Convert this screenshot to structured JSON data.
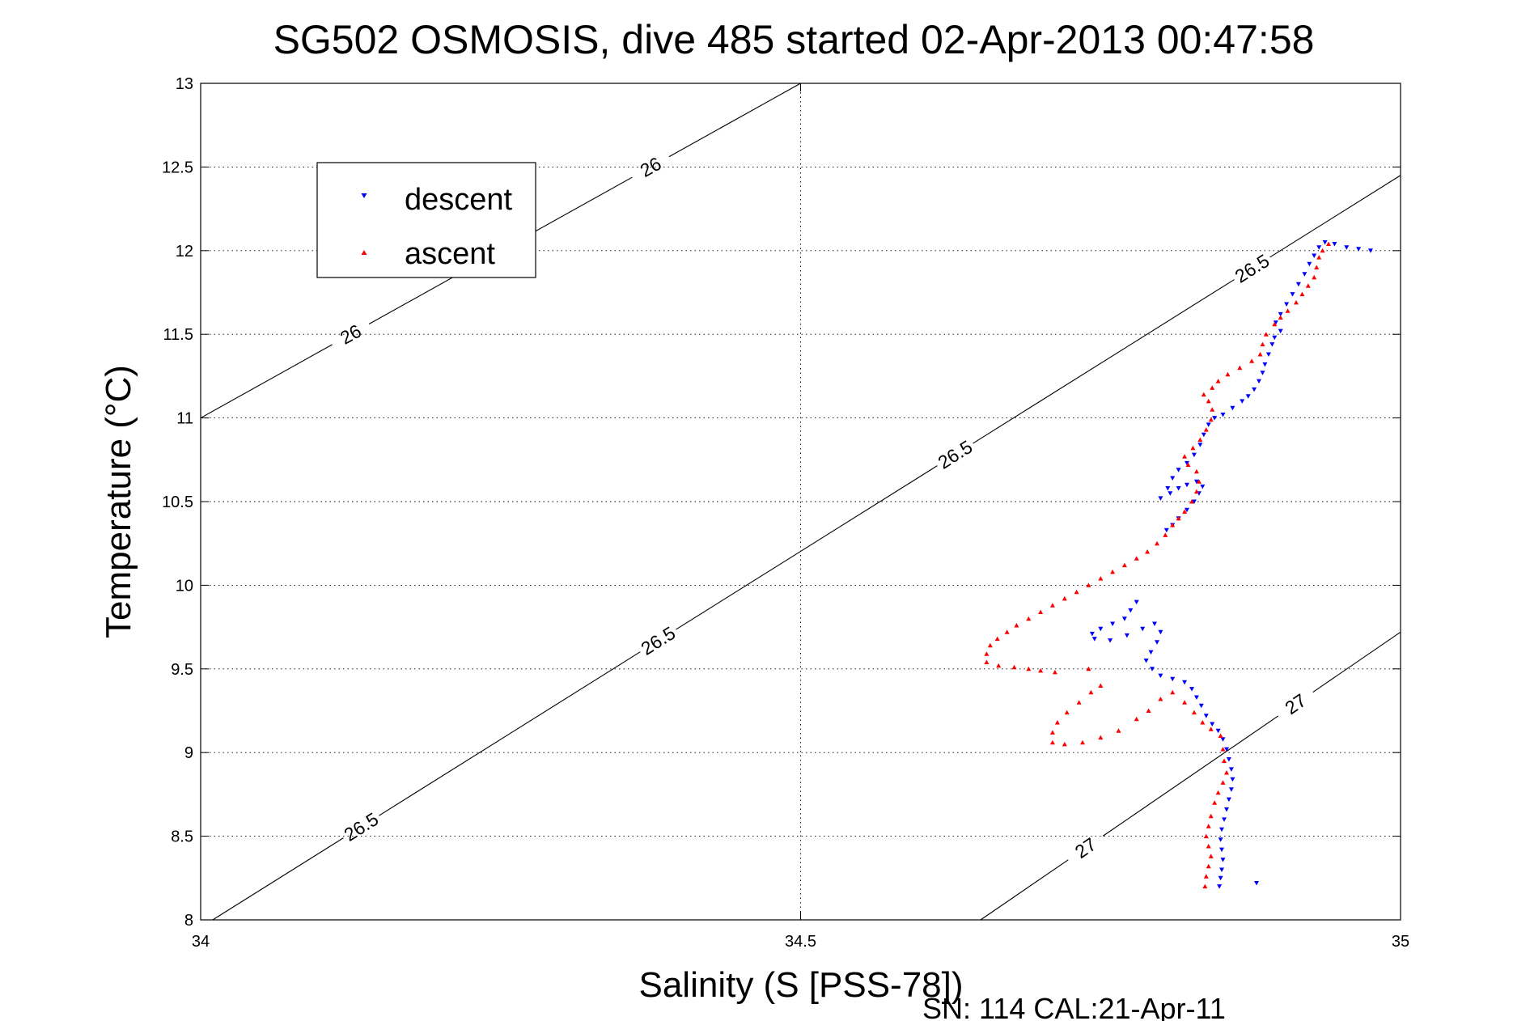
{
  "chart_data": {
    "type": "scatter",
    "title": "SG502 OSMOSIS, dive 485 started 02-Apr-2013 00:47:58",
    "xlabel": "Salinity (S [PSS-78])",
    "ylabel": "Temperature (°C)",
    "footer": "SN: 114  CAL:21-Apr-11",
    "xlim": [
      34,
      35
    ],
    "ylim": [
      8,
      13
    ],
    "x_ticks": [
      "34",
      "34.5",
      "35"
    ],
    "y_ticks": [
      "8",
      "8.5",
      "9",
      "9.5",
      "10",
      "10.5",
      "11",
      "11.5",
      "12",
      "12.5",
      "13"
    ],
    "grid": true,
    "legend_position": "top-left",
    "isopycnals": [
      {
        "value": 26,
        "labels": [
          "26",
          "26"
        ],
        "points": [
          [
            34.0,
            11.0
          ],
          [
            34.5,
            13.0
          ]
        ]
      },
      {
        "value": 26.5,
        "labels": [
          "26.5",
          "26.5",
          "26.5",
          "26.5"
        ],
        "points": [
          [
            34.01,
            8.0
          ],
          [
            35.0,
            12.45
          ]
        ]
      },
      {
        "value": 27,
        "labels": [
          "27",
          "27"
        ],
        "points": [
          [
            34.65,
            8.0
          ],
          [
            35.0,
            9.72
          ]
        ]
      }
    ],
    "series": [
      {
        "name": "descent",
        "color": "#0000ff",
        "marker": "triangle-down",
        "points": [
          [
            34.975,
            12.0
          ],
          [
            34.965,
            12.01
          ],
          [
            34.955,
            12.02
          ],
          [
            34.945,
            12.04
          ],
          [
            34.937,
            12.05
          ],
          [
            34.932,
            12.02
          ],
          [
            34.928,
            11.97
          ],
          [
            34.924,
            11.92
          ],
          [
            34.92,
            11.86
          ],
          [
            34.915,
            11.8
          ],
          [
            34.91,
            11.74
          ],
          [
            34.905,
            11.68
          ],
          [
            34.9,
            11.62
          ],
          [
            34.896,
            11.57
          ],
          [
            34.9,
            11.52
          ],
          [
            34.895,
            11.48
          ],
          [
            34.893,
            11.44
          ],
          [
            34.89,
            11.38
          ],
          [
            34.887,
            11.32
          ],
          [
            34.885,
            11.27
          ],
          [
            34.882,
            11.22
          ],
          [
            34.878,
            11.17
          ],
          [
            34.873,
            11.13
          ],
          [
            34.868,
            11.1
          ],
          [
            34.86,
            11.06
          ],
          [
            34.852,
            11.02
          ],
          [
            34.845,
            11.0
          ],
          [
            34.84,
            10.96
          ],
          [
            34.836,
            10.9
          ],
          [
            34.833,
            10.84
          ],
          [
            34.828,
            10.78
          ],
          [
            34.822,
            10.73
          ],
          [
            34.815,
            10.69
          ],
          [
            34.81,
            10.64
          ],
          [
            34.806,
            10.58
          ],
          [
            34.8,
            10.52
          ],
          [
            34.808,
            10.55
          ],
          [
            34.815,
            10.58
          ],
          [
            34.822,
            10.6
          ],
          [
            34.83,
            10.62
          ],
          [
            34.835,
            10.59
          ],
          [
            34.832,
            10.55
          ],
          [
            34.828,
            10.5
          ],
          [
            34.822,
            10.45
          ],
          [
            34.815,
            10.4
          ],
          [
            34.81,
            10.36
          ],
          [
            34.805,
            10.33
          ],
          [
            34.78,
            9.9
          ],
          [
            34.775,
            9.85
          ],
          [
            34.77,
            9.8
          ],
          [
            34.76,
            9.77
          ],
          [
            34.75,
            9.74
          ],
          [
            34.743,
            9.71
          ],
          [
            34.745,
            9.68
          ],
          [
            34.758,
            9.67
          ],
          [
            34.772,
            9.7
          ],
          [
            34.785,
            9.74
          ],
          [
            34.795,
            9.77
          ],
          [
            34.8,
            9.72
          ],
          [
            34.797,
            9.66
          ],
          [
            34.792,
            9.6
          ],
          [
            34.788,
            9.55
          ],
          [
            34.793,
            9.5
          ],
          [
            34.8,
            9.46
          ],
          [
            34.81,
            9.44
          ],
          [
            34.82,
            9.42
          ],
          [
            34.826,
            9.38
          ],
          [
            34.83,
            9.33
          ],
          [
            34.834,
            9.28
          ],
          [
            34.838,
            9.22
          ],
          [
            34.843,
            9.17
          ],
          [
            34.848,
            9.13
          ],
          [
            34.852,
            9.08
          ],
          [
            34.855,
            9.02
          ],
          [
            34.857,
            8.96
          ],
          [
            34.859,
            8.9
          ],
          [
            34.86,
            8.84
          ],
          [
            34.859,
            8.78
          ],
          [
            34.857,
            8.72
          ],
          [
            34.855,
            8.66
          ],
          [
            34.853,
            8.6
          ],
          [
            34.851,
            8.54
          ],
          [
            34.85,
            8.48
          ],
          [
            34.851,
            8.42
          ],
          [
            34.852,
            8.36
          ],
          [
            34.851,
            8.3
          ],
          [
            34.85,
            8.25
          ],
          [
            34.849,
            8.2
          ],
          [
            34.88,
            8.22
          ]
        ]
      },
      {
        "name": "ascent",
        "color": "#ff0000",
        "marker": "triangle-up",
        "points": [
          [
            34.94,
            12.04
          ],
          [
            34.935,
            12.0
          ],
          [
            34.932,
            11.96
          ],
          [
            34.93,
            11.9
          ],
          [
            34.928,
            11.84
          ],
          [
            34.923,
            11.79
          ],
          [
            34.918,
            11.74
          ],
          [
            34.913,
            11.69
          ],
          [
            34.906,
            11.64
          ],
          [
            34.9,
            11.6
          ],
          [
            34.895,
            11.56
          ],
          [
            34.888,
            11.5
          ],
          [
            34.885,
            11.44
          ],
          [
            34.883,
            11.38
          ],
          [
            34.876,
            11.34
          ],
          [
            34.866,
            11.3
          ],
          [
            34.856,
            11.26
          ],
          [
            34.848,
            11.22
          ],
          [
            34.843,
            11.18
          ],
          [
            34.836,
            11.14
          ],
          [
            34.84,
            11.1
          ],
          [
            34.843,
            11.05
          ],
          [
            34.842,
            10.99
          ],
          [
            34.838,
            10.93
          ],
          [
            34.833,
            10.87
          ],
          [
            34.827,
            10.82
          ],
          [
            34.82,
            10.77
          ],
          [
            34.823,
            10.72
          ],
          [
            34.83,
            10.68
          ],
          [
            34.832,
            10.62
          ],
          [
            34.83,
            10.56
          ],
          [
            34.826,
            10.5
          ],
          [
            34.82,
            10.44
          ],
          [
            34.815,
            10.4
          ],
          [
            34.81,
            10.36
          ],
          [
            34.804,
            10.3
          ],
          [
            34.797,
            10.25
          ],
          [
            34.789,
            10.2
          ],
          [
            34.78,
            10.16
          ],
          [
            34.77,
            10.12
          ],
          [
            34.76,
            10.08
          ],
          [
            34.75,
            10.04
          ],
          [
            34.74,
            10.0
          ],
          [
            34.73,
            9.96
          ],
          [
            34.72,
            9.92
          ],
          [
            34.71,
            9.88
          ],
          [
            34.7,
            9.84
          ],
          [
            34.69,
            9.8
          ],
          [
            34.68,
            9.76
          ],
          [
            34.672,
            9.72
          ],
          [
            34.664,
            9.68
          ],
          [
            34.658,
            9.64
          ],
          [
            34.655,
            9.59
          ],
          [
            34.655,
            9.54
          ],
          [
            34.665,
            9.52
          ],
          [
            34.678,
            9.51
          ],
          [
            34.69,
            9.5
          ],
          [
            34.7,
            9.49
          ],
          [
            34.712,
            9.48
          ],
          [
            34.74,
            9.5
          ],
          [
            34.75,
            9.4
          ],
          [
            34.742,
            9.36
          ],
          [
            34.732,
            9.3
          ],
          [
            34.722,
            9.24
          ],
          [
            34.714,
            9.18
          ],
          [
            34.71,
            9.12
          ],
          [
            34.71,
            9.06
          ],
          [
            34.72,
            9.05
          ],
          [
            34.735,
            9.06
          ],
          [
            34.75,
            9.09
          ],
          [
            34.765,
            9.13
          ],
          [
            34.78,
            9.2
          ],
          [
            34.79,
            9.25
          ],
          [
            34.8,
            9.32
          ],
          [
            34.81,
            9.36
          ],
          [
            34.82,
            9.3
          ],
          [
            34.828,
            9.24
          ],
          [
            34.835,
            9.18
          ],
          [
            34.842,
            9.14
          ],
          [
            34.85,
            9.1
          ],
          [
            34.852,
            9.02
          ],
          [
            34.853,
            8.95
          ],
          [
            34.855,
            8.88
          ],
          [
            34.852,
            8.82
          ],
          [
            34.848,
            8.76
          ],
          [
            34.845,
            8.7
          ],
          [
            34.842,
            8.62
          ],
          [
            34.84,
            8.56
          ],
          [
            34.838,
            8.5
          ],
          [
            34.84,
            8.44
          ],
          [
            34.842,
            8.38
          ],
          [
            34.84,
            8.32
          ],
          [
            34.838,
            8.26
          ],
          [
            34.837,
            8.2
          ]
        ]
      }
    ]
  }
}
